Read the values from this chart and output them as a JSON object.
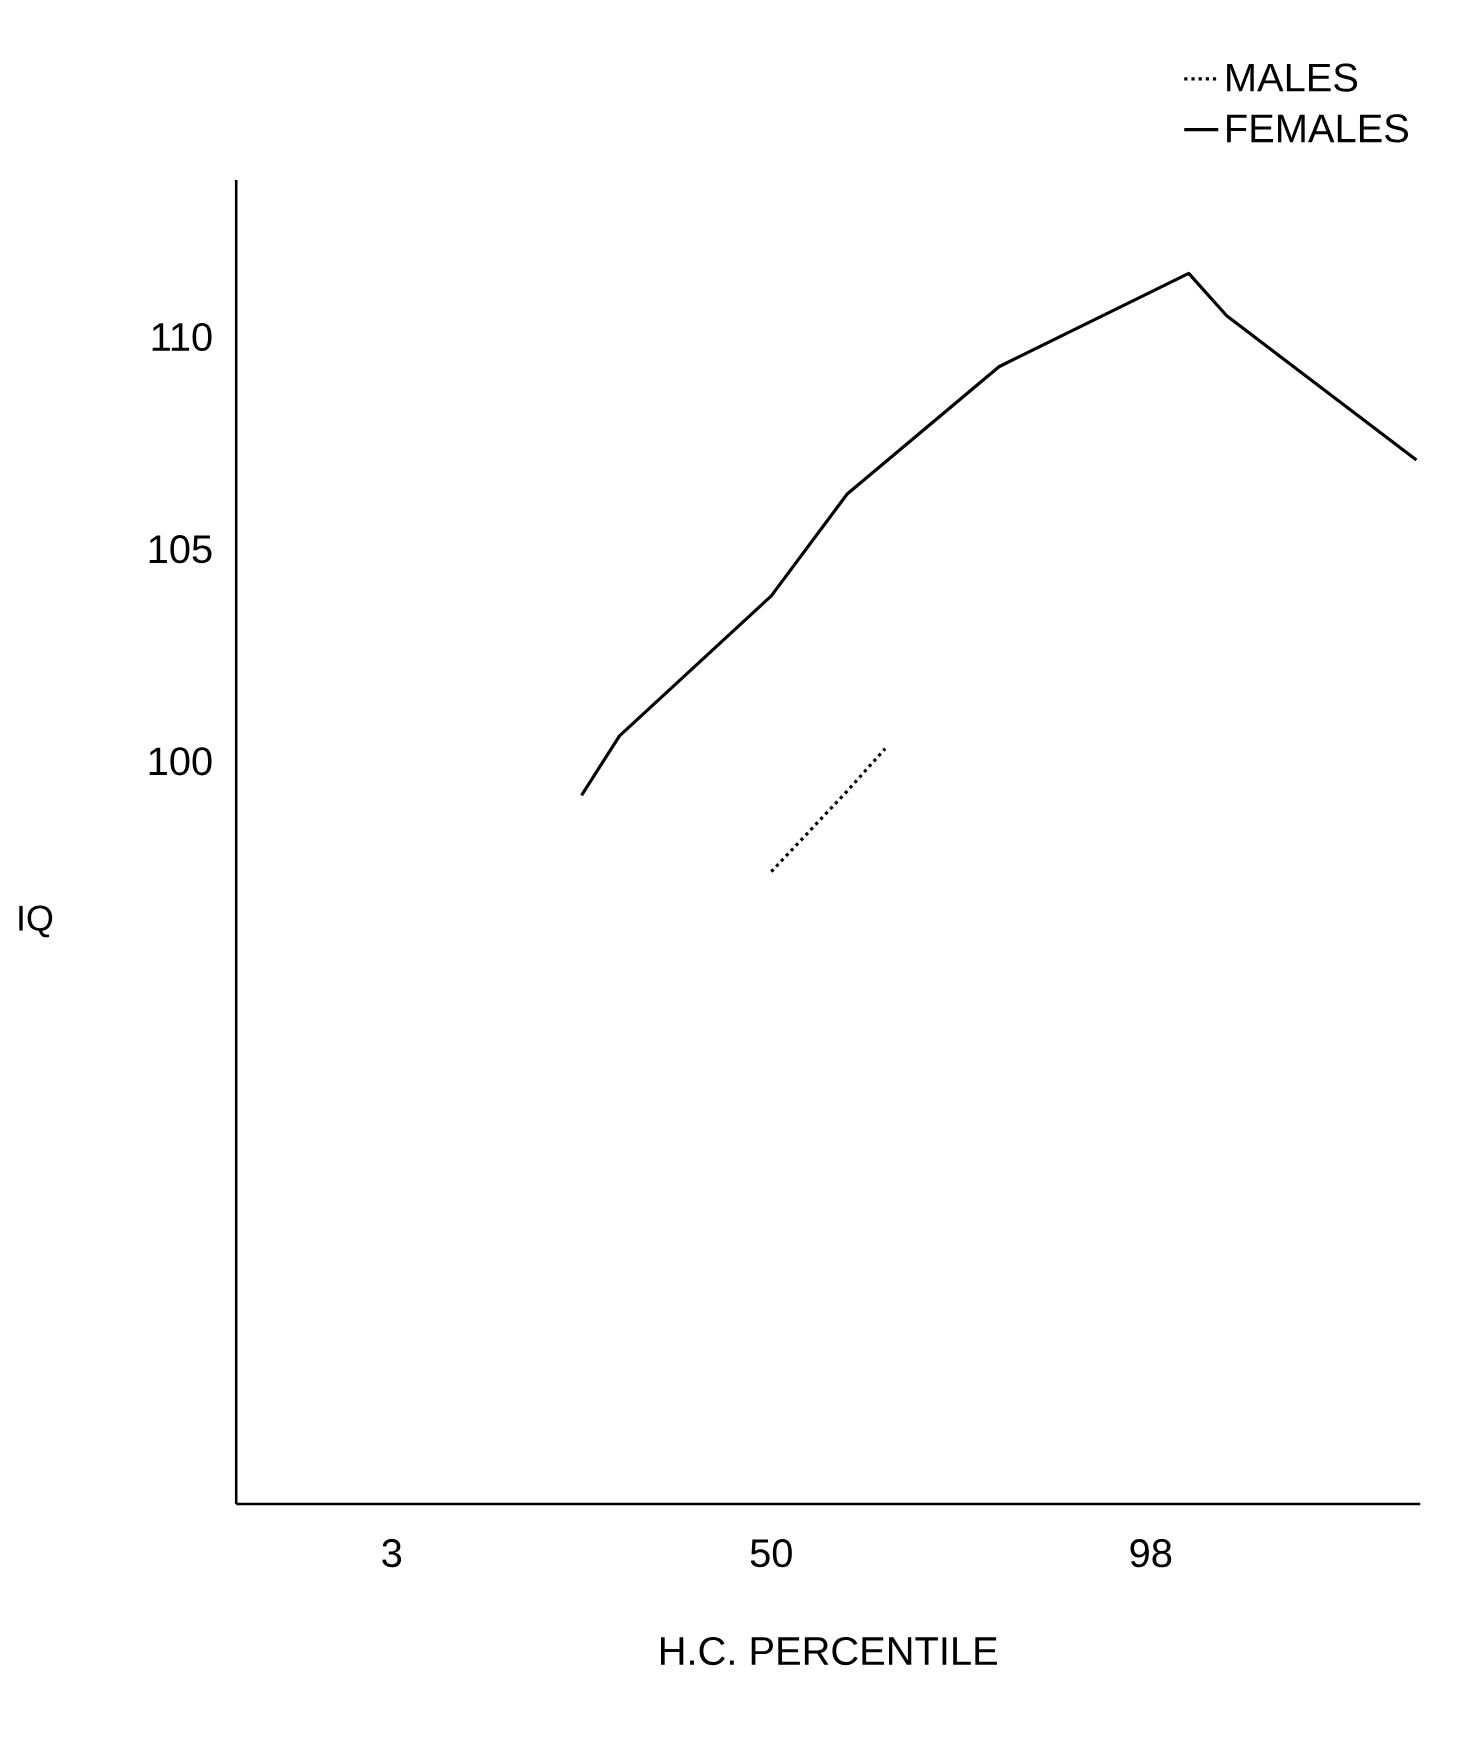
{
  "chart_data": {
    "type": "line",
    "xlabel": "H.C. PERCENTILE",
    "ylabel": "IQ",
    "categories": [
      null,
      null,
      null,
      null,
      "3",
      null,
      null,
      null,
      null,
      null,
      null,
      null,
      null,
      null,
      "50",
      null,
      null,
      null,
      null,
      null,
      null,
      null,
      null,
      null,
      "98",
      null,
      null,
      null,
      null,
      null,
      null,
      null
    ],
    "ylim": [
      82.5,
      113.7
    ],
    "yticks": [
      100,
      105,
      110
    ],
    "grid": false,
    "legend": "top right",
    "marker": "none",
    "series": [
      {
        "name": "MALES",
        "color": "#000000",
        "line_style": "dotted",
        "values": [
          null,
          null,
          null,
          null,
          null,
          null,
          null,
          null,
          null,
          null,
          null,
          null,
          null,
          null,
          97.4,
          null,
          99.3,
          100.3,
          null,
          null,
          null,
          null,
          null,
          null,
          null,
          null,
          null,
          null,
          null,
          null,
          null,
          null
        ]
      },
      {
        "name": "FEMALES",
        "color": "#000000",
        "line_style": "solid",
        "values": [
          null,
          null,
          null,
          null,
          null,
          null,
          null,
          null,
          null,
          99.2,
          100.6,
          null,
          null,
          null,
          103.9,
          null,
          106.3,
          null,
          null,
          null,
          109.3,
          null,
          null,
          null,
          null,
          111.5,
          110.5,
          null,
          null,
          null,
          null,
          107.1
        ]
      }
    ]
  }
}
